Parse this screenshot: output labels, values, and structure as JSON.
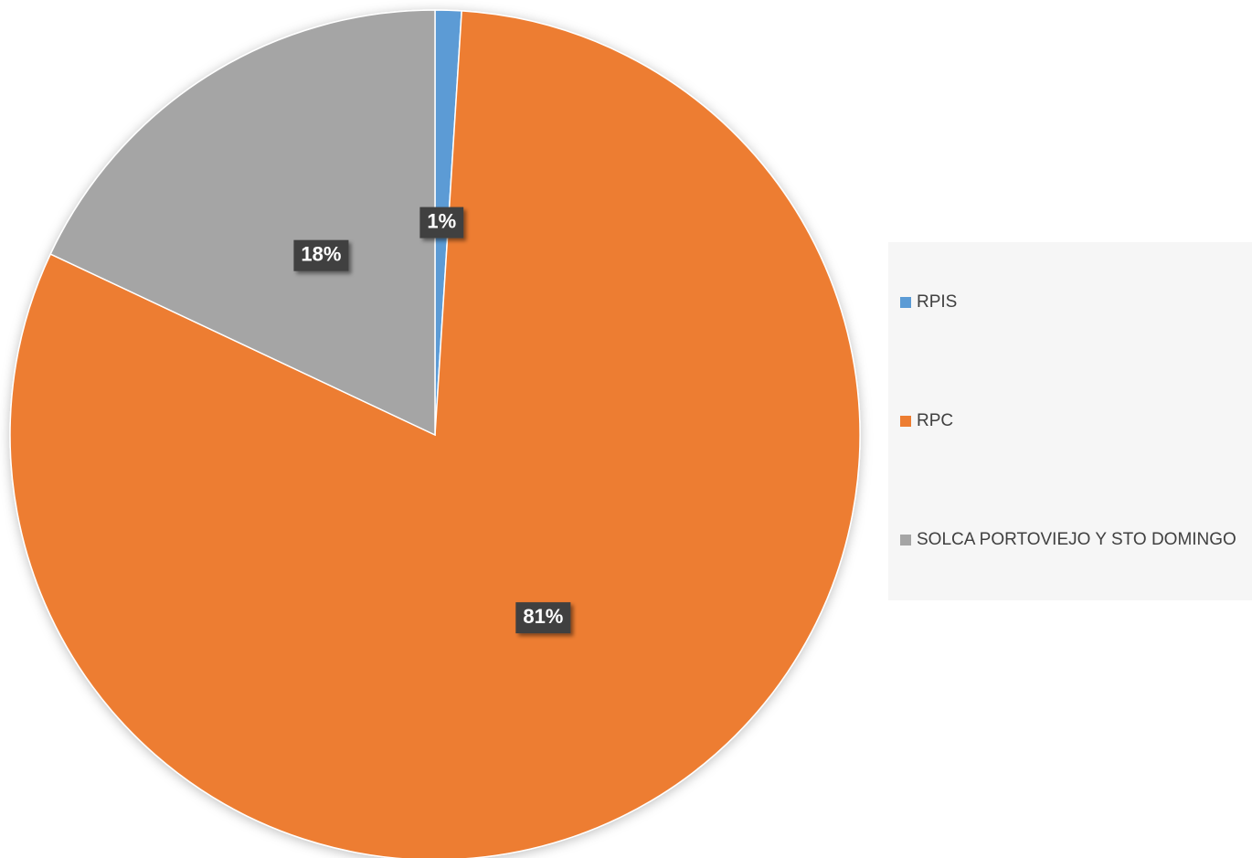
{
  "chart_data": {
    "type": "pie",
    "categories": [
      "RPIS",
      "RPC",
      "SOLCA PORTOVIEJO Y STO DOMINGO"
    ],
    "values": [
      1,
      81,
      18
    ],
    "value_labels": [
      "1%",
      "81%",
      "18%"
    ],
    "colors": [
      "#5b9bd5",
      "#ed7d31",
      "#a5a5a5"
    ],
    "legend": "right"
  }
}
